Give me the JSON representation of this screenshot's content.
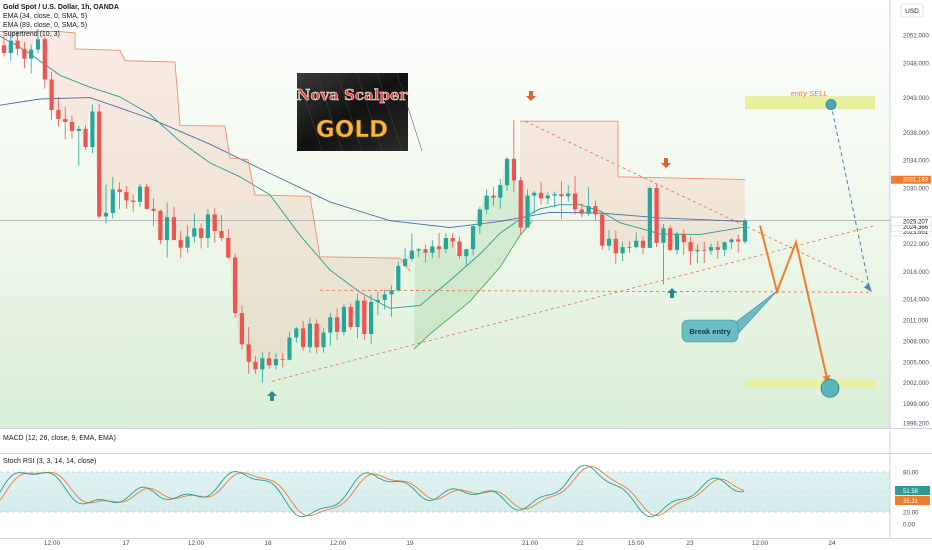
{
  "header": {
    "title": "Gold Spot / U.S. Dollar, 1h, OANDA",
    "indicators": [
      "EMA (34, close, 0, SMA, 5)",
      "EMA (89, close, 0, SMA, 5)",
      "Supertrend (10, 3)"
    ],
    "currency": "USD"
  },
  "logo": {
    "line1": "Nova Scalper",
    "line2": "GOLD"
  },
  "annotations": {
    "entry_sell": "entry SELL",
    "break_entry": "Break entry"
  },
  "sub_panels": {
    "macd": "MACD (12, 26, close, 9, EMA, EMA)",
    "stoch": "Stoch RSI (3, 3, 14, 14, close)"
  },
  "colors": {
    "bull": "#26a69a",
    "bear": "#ef5350",
    "ema_fast": "#2a9d8f",
    "ema_slow": "#4a6fa5",
    "supertrend_down": "#f28b6b",
    "supertrend_up": "#4caf50",
    "arrow_down": "#e0622b",
    "arrow_up": "#2a8c83",
    "projection": "#f07b2f",
    "zone": "#e8f0a0",
    "sell_dashes": "#4a82b8"
  },
  "chart_data": {
    "type": "candlestick",
    "symbol": "Gold Spot / U.S. Dollar",
    "interval": "1h",
    "ylim": [
      1996.2,
      2055.0
    ],
    "price_ticks": [
      "2052.000",
      "2048.000",
      "2043.000",
      "2038.000",
      "2034.000",
      "2030.000",
      "2022.000",
      "2018.000",
      "2014.000",
      "2011.000",
      "2008.000",
      "2005.000",
      "2002.000",
      "1999.000",
      "1996.200"
    ],
    "time_labels": [
      "12:00",
      "17",
      "12:00",
      "18",
      "12:00",
      "19",
      "21:00",
      "22",
      "15:00",
      "23",
      "12:00",
      "24"
    ],
    "price_labels": [
      {
        "value": 2031.183,
        "text": "2031.183",
        "color": "#f07b2f"
      },
      {
        "value": 2025.33,
        "text": "2025.330",
        "sub": "17:55",
        "color": "#131722"
      },
      {
        "value": 2023.661,
        "text": "2023.661",
        "color": "#131722"
      },
      {
        "value": 2024.366,
        "text": "2024.366",
        "color": "#131722"
      },
      {
        "value": 2025.207,
        "text": "2025.207",
        "color": "#131722"
      }
    ],
    "candles": [
      [
        2050.5,
        2051.8,
        2048.9,
        2049.4
      ],
      [
        2049.4,
        2052.6,
        2048.3,
        2051.2
      ],
      [
        2051.2,
        2052.3,
        2049.1,
        2050.0
      ],
      [
        2050.0,
        2051.0,
        2047.2,
        2048.6
      ],
      [
        2048.6,
        2050.6,
        2046.5,
        2049.9
      ],
      [
        2049.9,
        2052.9,
        2049.3,
        2051.4
      ],
      [
        2051.4,
        2051.7,
        2044.3,
        2045.6
      ],
      [
        2045.6,
        2046.7,
        2039.8,
        2041.2
      ],
      [
        2041.2,
        2043.1,
        2038.8,
        2039.9
      ],
      [
        2039.9,
        2041.7,
        2037.0,
        2039.5
      ],
      [
        2039.5,
        2040.4,
        2037.1,
        2038.2
      ],
      [
        2038.2,
        2038.9,
        2033.2,
        2038.5
      ],
      [
        2038.5,
        2039.0,
        2035.5,
        2035.9
      ],
      [
        2035.9,
        2042.0,
        2035.0,
        2041.0
      ],
      [
        2041.0,
        2042.1,
        2025.6,
        2025.9
      ],
      [
        2025.9,
        2030.5,
        2024.9,
        2026.4
      ],
      [
        2026.4,
        2031.6,
        2025.6,
        2029.8
      ],
      [
        2029.8,
        2030.8,
        2027.0,
        2029.4
      ],
      [
        2029.4,
        2030.3,
        2027.0,
        2028.2
      ],
      [
        2028.2,
        2029.0,
        2026.6,
        2028.0
      ],
      [
        2028.0,
        2030.6,
        2027.3,
        2030.2
      ],
      [
        2030.2,
        2030.6,
        2026.9,
        2027.0
      ],
      [
        2027.0,
        2028.5,
        2024.5,
        2026.7
      ],
      [
        2026.7,
        2026.9,
        2021.9,
        2022.5
      ],
      [
        2022.5,
        2027.9,
        2020.0,
        2025.8
      ],
      [
        2025.8,
        2027.3,
        2022.5,
        2022.5
      ],
      [
        2022.5,
        2023.8,
        2019.9,
        2021.4
      ],
      [
        2021.4,
        2024.6,
        2020.7,
        2023.0
      ],
      [
        2023.0,
        2026.3,
        2022.1,
        2024.2
      ],
      [
        2024.2,
        2024.9,
        2021.3,
        2022.8
      ],
      [
        2022.8,
        2027.0,
        2021.4,
        2026.2
      ],
      [
        2026.2,
        2027.1,
        2022.1,
        2023.8
      ],
      [
        2023.8,
        2026.1,
        2022.4,
        2022.8
      ],
      [
        2022.8,
        2024.1,
        2019.8,
        2020.0
      ],
      [
        2020.0,
        2020.6,
        2011.3,
        2012.0
      ],
      [
        2012.0,
        2013.1,
        2006.8,
        2007.5
      ],
      [
        2007.5,
        2010.0,
        2003.3,
        2005.0
      ],
      [
        2005.0,
        2005.8,
        2003.3,
        2003.9
      ],
      [
        2003.9,
        2006.4,
        2002.0,
        2005.5
      ],
      [
        2005.5,
        2006.4,
        2004.0,
        2004.5
      ],
      [
        2004.5,
        2006.2,
        2003.9,
        2005.4
      ],
      [
        2005.4,
        2006.2,
        2004.2,
        2005.3
      ],
      [
        2005.3,
        2009.3,
        2005.2,
        2008.5
      ],
      [
        2008.5,
        2010.0,
        2007.8,
        2009.8
      ],
      [
        2009.8,
        2010.9,
        2006.6,
        2007.1
      ],
      [
        2007.1,
        2011.4,
        2006.3,
        2010.5
      ],
      [
        2010.5,
        2011.1,
        2006.2,
        2007.1
      ],
      [
        2007.1,
        2009.8,
        2006.3,
        2009.2
      ],
      [
        2009.2,
        2012.0,
        2007.3,
        2011.4
      ],
      [
        2011.4,
        2012.7,
        2008.1,
        2009.3
      ],
      [
        2009.3,
        2013.3,
        2008.8,
        2012.9
      ],
      [
        2012.9,
        2013.4,
        2009.6,
        2010.0
      ],
      [
        2010.0,
        2014.8,
        2008.4,
        2013.8
      ],
      [
        2013.8,
        2014.5,
        2008.1,
        2009.0
      ],
      [
        2009.0,
        2014.7,
        2007.6,
        2013.6
      ],
      [
        2013.6,
        2015.1,
        2011.7,
        2013.9
      ],
      [
        2013.9,
        2015.4,
        2012.5,
        2014.7
      ],
      [
        2014.7,
        2016.0,
        2011.5,
        2015.3
      ],
      [
        2015.3,
        2019.4,
        2015.1,
        2018.8
      ],
      [
        2018.8,
        2021.3,
        2018.6,
        2019.8
      ],
      [
        2019.8,
        2023.4,
        2019.4,
        2021.0
      ],
      [
        2021.0,
        2021.4,
        2020.1,
        2021.2
      ],
      [
        2021.2,
        2021.9,
        2019.3,
        2020.7
      ],
      [
        2020.7,
        2022.5,
        2019.9,
        2021.6
      ],
      [
        2021.6,
        2023.5,
        2019.9,
        2021.2
      ],
      [
        2021.2,
        2023.5,
        2020.6,
        2022.8
      ],
      [
        2022.8,
        2023.5,
        2021.4,
        2022.3
      ],
      [
        2022.3,
        2023.0,
        2019.8,
        2020.2
      ],
      [
        2020.2,
        2021.3,
        2018.8,
        2021.2
      ],
      [
        2021.2,
        2024.6,
        2020.3,
        2024.5
      ],
      [
        2024.5,
        2027.3,
        2023.4,
        2026.9
      ],
      [
        2026.9,
        2029.8,
        2026.2,
        2028.9
      ],
      [
        2028.9,
        2030.1,
        2027.4,
        2028.6
      ],
      [
        2028.6,
        2031.3,
        2027.0,
        2030.4
      ],
      [
        2030.4,
        2034.4,
        2029.6,
        2034.2
      ],
      [
        2034.2,
        2039.8,
        2029.4,
        2031.1
      ],
      [
        2031.1,
        2031.6,
        2023.3,
        2024.3
      ],
      [
        2024.3,
        2029.8,
        2024.4,
        2028.9
      ],
      [
        2028.9,
        2029.6,
        2026.3,
        2029.3
      ],
      [
        2029.3,
        2030.9,
        2027.6,
        2028.5
      ],
      [
        2028.5,
        2029.4,
        2027.7,
        2028.9
      ],
      [
        2028.9,
        2029.5,
        2027.2,
        2029.1
      ],
      [
        2029.1,
        2031.0,
        2025.5,
        2028.8
      ],
      [
        2028.8,
        2030.4,
        2028.0,
        2029.2
      ],
      [
        2029.2,
        2031.7,
        2026.2,
        2026.9
      ],
      [
        2026.9,
        2027.8,
        2025.8,
        2026.3
      ],
      [
        2026.3,
        2030.1,
        2026.0,
        2027.4
      ],
      [
        2027.4,
        2028.2,
        2025.3,
        2026.2
      ],
      [
        2026.2,
        2026.3,
        2021.1,
        2021.7
      ],
      [
        2021.7,
        2024.0,
        2021.0,
        2022.7
      ],
      [
        2022.7,
        2023.9,
        2019.1,
        2020.6
      ],
      [
        2020.6,
        2022.3,
        2019.5,
        2021.5
      ],
      [
        2021.5,
        2022.4,
        2020.7,
        2021.5
      ],
      [
        2021.5,
        2023.6,
        2021.3,
        2022.4
      ],
      [
        2022.4,
        2023.0,
        2020.5,
        2021.4
      ],
      [
        2021.4,
        2030.2,
        2021.4,
        2030.0
      ],
      [
        2030.0,
        2030.5,
        2021.5,
        2022.1
      ],
      [
        2022.1,
        2024.8,
        2016.1,
        2024.2
      ],
      [
        2024.2,
        2024.6,
        2020.9,
        2021.1
      ],
      [
        2021.1,
        2023.7,
        2020.5,
        2023.4
      ],
      [
        2023.4,
        2024.1,
        2020.4,
        2022.2
      ],
      [
        2022.2,
        2023.0,
        2018.9,
        2020.9
      ],
      [
        2020.9,
        2021.9,
        2019.2,
        2021.1
      ],
      [
        2021.1,
        2022.3,
        2019.2,
        2021.0
      ],
      [
        2021.0,
        2022.0,
        2020.4,
        2021.5
      ],
      [
        2021.5,
        2022.4,
        2019.8,
        2021.1
      ],
      [
        2021.1,
        2022.3,
        2020.2,
        2022.2
      ],
      [
        2022.2,
        2022.8,
        2021.2,
        2022.6
      ],
      [
        2022.6,
        2023.3,
        2020.7,
        2022.3
      ],
      [
        2022.3,
        2025.6,
        2022.0,
        2025.3
      ]
    ],
    "ema_fast": [
      [
        0,
        2051.8
      ],
      [
        12,
        2050.9
      ],
      [
        30,
        2049.3
      ],
      [
        60,
        2046.2
      ],
      [
        90,
        2044.5
      ],
      [
        120,
        2043.1
      ],
      [
        150,
        2040.6
      ],
      [
        180,
        2036.7
      ],
      [
        210,
        2033.6
      ],
      [
        240,
        2031.6
      ],
      [
        270,
        2029.0
      ],
      [
        300,
        2023.2
      ],
      [
        330,
        2018.2
      ],
      [
        360,
        2015.0
      ],
      [
        390,
        2012.7
      ],
      [
        420,
        2013.1
      ],
      [
        450,
        2016.7
      ],
      [
        480,
        2020.5
      ],
      [
        500,
        2023.5
      ],
      [
        520,
        2025.5
      ],
      [
        540,
        2027.0
      ],
      [
        560,
        2027.6
      ],
      [
        580,
        2027.6
      ],
      [
        600,
        2026.7
      ],
      [
        620,
        2025.0
      ],
      [
        660,
        2023.4
      ],
      [
        700,
        2023.3
      ],
      [
        745,
        2024.4
      ]
    ],
    "ema_slow": [
      [
        0,
        2041.9
      ],
      [
        40,
        2042.8
      ],
      [
        90,
        2043.0
      ],
      [
        150,
        2040.0
      ],
      [
        210,
        2036.3
      ],
      [
        270,
        2032.1
      ],
      [
        330,
        2028.0
      ],
      [
        390,
        2025.3
      ],
      [
        450,
        2024.3
      ],
      [
        500,
        2025.2
      ],
      [
        550,
        2026.5
      ],
      [
        600,
        2026.4
      ],
      [
        660,
        2025.7
      ],
      [
        745,
        2025.2
      ]
    ],
    "supertrend": [
      {
        "dir": "down",
        "pts": [
          [
            0,
            2052.5
          ],
          [
            60,
            2052.5
          ],
          [
            75,
            2052.3
          ],
          [
            75,
            2050.0
          ],
          [
            120,
            2049.8
          ],
          [
            125,
            2048.3
          ],
          [
            175,
            2048.1
          ],
          [
            180,
            2039.0
          ],
          [
            225,
            2038.9
          ],
          [
            230,
            2034.3
          ],
          [
            248,
            2034.1
          ],
          [
            255,
            2029.0
          ],
          [
            310,
            2028.8
          ],
          [
            320,
            2020.1
          ],
          [
            400,
            2019.9
          ],
          [
            410,
            2018.0
          ]
        ]
      },
      {
        "dir": "up",
        "pts": [
          [
            414,
            2006.8
          ],
          [
            430,
            2009.0
          ],
          [
            470,
            2013.7
          ],
          [
            500,
            2018.6
          ],
          [
            520,
            2023.2
          ],
          [
            532,
            2025.2
          ]
        ]
      },
      {
        "dir": "down",
        "pts": [
          [
            520,
            2039.6
          ],
          [
            600,
            2039.6
          ],
          [
            618,
            2039.6
          ],
          [
            618,
            2031.6
          ],
          [
            745,
            2031.2
          ]
        ]
      }
    ],
    "trendlines": [
      {
        "name": "support",
        "pts": [
          [
            272,
            2002.2
          ],
          [
            875,
            2024.6
          ]
        ]
      },
      {
        "name": "resistance",
        "pts": [
          [
            525,
            2039.6
          ],
          [
            870,
            2016.0
          ]
        ]
      },
      {
        "name": "horizontal",
        "pts": [
          [
            320,
            2015.3
          ],
          [
            870,
            2015.0
          ]
        ]
      }
    ],
    "projection": [
      [
        760,
        2024.6
      ],
      [
        777,
        2015.1
      ],
      [
        796,
        2022.2
      ],
      [
        828,
        2002.0
      ]
    ],
    "sell_zone": [
      2041.3,
      2043.2
    ],
    "target_zone": [
      2001.3,
      2002.5
    ],
    "stoch_ticks": [
      "80.00",
      "20.00",
      "0.00"
    ],
    "stoch_values": {
      "k": 51.58,
      "d": 35.31
    }
  }
}
